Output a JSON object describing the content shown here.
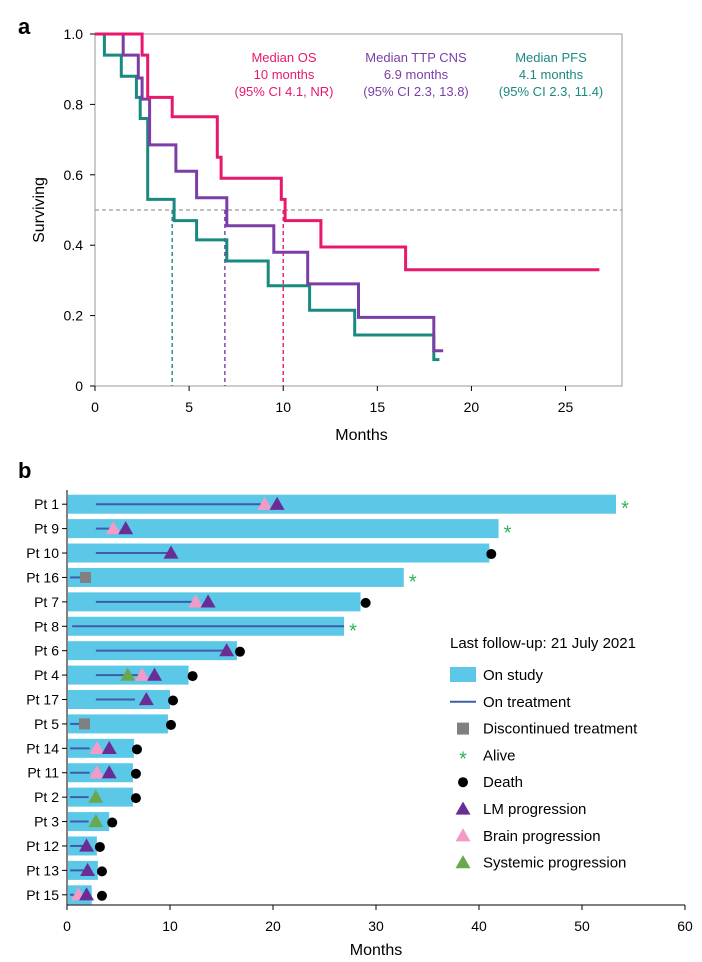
{
  "chart_data": [
    {
      "type": "line",
      "panel": "a",
      "xlabel": "Months",
      "ylabel": "Surviving",
      "xlim": [
        0,
        28
      ],
      "ylim": [
        0,
        1
      ],
      "xticks": [
        "0",
        "5",
        "10",
        "15",
        "20",
        "25"
      ],
      "yticks": [
        "0",
        "0.2",
        "0.4",
        "0.6",
        "0.8",
        "1.0"
      ],
      "median_line": 0.5,
      "series": [
        {
          "name": "OS",
          "color": "#e8186d",
          "steps": [
            [
              0,
              1.0
            ],
            [
              2.5,
              1.0
            ],
            [
              2.5,
              0.94
            ],
            [
              2.8,
              0.94
            ],
            [
              2.8,
              0.82
            ],
            [
              4.1,
              0.82
            ],
            [
              4.1,
              0.765
            ],
            [
              6.5,
              0.765
            ],
            [
              6.5,
              0.65
            ],
            [
              6.7,
              0.65
            ],
            [
              6.7,
              0.59
            ],
            [
              9.9,
              0.59
            ],
            [
              9.9,
              0.53
            ],
            [
              10.1,
              0.53
            ],
            [
              10.1,
              0.47
            ],
            [
              12.0,
              0.47
            ],
            [
              12.0,
              0.395
            ],
            [
              16.5,
              0.395
            ],
            [
              16.5,
              0.33
            ],
            [
              26.8,
              0.33
            ]
          ],
          "annotation": [
            "Median OS",
            "10 months",
            "(95% CI 4.1, NR)"
          ],
          "median": 10.0
        },
        {
          "name": "TTP CNS",
          "color": "#7b3ea6",
          "steps": [
            [
              0,
              1.0
            ],
            [
              1.5,
              1.0
            ],
            [
              1.5,
              0.94
            ],
            [
              2.3,
              0.94
            ],
            [
              2.3,
              0.875
            ],
            [
              2.5,
              0.875
            ],
            [
              2.5,
              0.815
            ],
            [
              2.9,
              0.815
            ],
            [
              2.9,
              0.685
            ],
            [
              4.3,
              0.685
            ],
            [
              4.3,
              0.61
            ],
            [
              5.4,
              0.61
            ],
            [
              5.4,
              0.535
            ],
            [
              7.0,
              0.535
            ],
            [
              7.0,
              0.455
            ],
            [
              9.5,
              0.455
            ],
            [
              9.5,
              0.38
            ],
            [
              11.3,
              0.38
            ],
            [
              11.3,
              0.29
            ],
            [
              14.0,
              0.29
            ],
            [
              14.0,
              0.195
            ],
            [
              18.0,
              0.195
            ],
            [
              18.0,
              0.1
            ],
            [
              18.5,
              0.1
            ]
          ],
          "annotation": [
            "Median TTP CNS",
            "6.9 months",
            "(95% CI 2.3, 13.8)"
          ],
          "median": 6.9
        },
        {
          "name": "PFS",
          "color": "#1a8a80",
          "steps": [
            [
              0,
              1.0
            ],
            [
              0.5,
              1.0
            ],
            [
              0.5,
              0.94
            ],
            [
              1.4,
              0.94
            ],
            [
              1.4,
              0.88
            ],
            [
              2.2,
              0.88
            ],
            [
              2.2,
              0.82
            ],
            [
              2.4,
              0.82
            ],
            [
              2.4,
              0.76
            ],
            [
              2.8,
              0.76
            ],
            [
              2.8,
              0.53
            ],
            [
              4.2,
              0.53
            ],
            [
              4.2,
              0.47
            ],
            [
              5.4,
              0.47
            ],
            [
              5.4,
              0.415
            ],
            [
              7.0,
              0.415
            ],
            [
              7.0,
              0.355
            ],
            [
              9.2,
              0.355
            ],
            [
              9.2,
              0.285
            ],
            [
              11.4,
              0.285
            ],
            [
              11.4,
              0.215
            ],
            [
              13.8,
              0.215
            ],
            [
              13.8,
              0.145
            ],
            [
              18.0,
              0.145
            ],
            [
              18.0,
              0.075
            ],
            [
              18.3,
              0.075
            ]
          ],
          "annotation": [
            "Median PFS",
            "4.1 months",
            "(95% CI 2.3, 11.4)"
          ],
          "median": 4.1
        }
      ]
    },
    {
      "type": "bar",
      "panel": "b",
      "orientation": "horizontal",
      "xlabel": "Months",
      "xlim": [
        0,
        60
      ],
      "xticks": [
        "0",
        "10",
        "20",
        "30",
        "40",
        "50",
        "60"
      ],
      "legend": {
        "title": "Last follow-up: 21 July 2021",
        "items": [
          {
            "key": "on_study",
            "label": "On study"
          },
          {
            "key": "on_treatment",
            "label": "On treatment"
          },
          {
            "key": "discontinued",
            "label": "Discontinued treatment"
          },
          {
            "key": "alive",
            "label": "Alive"
          },
          {
            "key": "death",
            "label": "Death"
          },
          {
            "key": "lm",
            "label": "LM progression"
          },
          {
            "key": "brain",
            "label": "Brain progression"
          },
          {
            "key": "systemic",
            "label": "Systemic progression"
          }
        ]
      },
      "colors": {
        "bar": "#5bc8e8",
        "treatment": "#3c5ea8",
        "discontinued": "#808080",
        "alive": "#2fb35a",
        "death": "#000000",
        "lm": "#6a2d96",
        "brain": "#f49ac9",
        "systemic": "#6aa84f"
      },
      "patients": [
        {
          "label": "Pt 1",
          "study": 53.3,
          "treatment": [
            2.8,
            19.2
          ],
          "brain": [
            19.2
          ],
          "lm": [
            20.4
          ],
          "systemic": [],
          "alive": true,
          "death": false,
          "discontinued": null
        },
        {
          "label": "Pt 9",
          "study": 41.9,
          "treatment": [
            2.8,
            4.3
          ],
          "brain": [
            4.5
          ],
          "lm": [
            5.7
          ],
          "systemic": [],
          "alive": true,
          "death": false,
          "discontinued": null
        },
        {
          "label": "Pt 10",
          "study": 41.0,
          "treatment": [
            2.8,
            9.9
          ],
          "brain": [],
          "lm": [
            10.1
          ],
          "systemic": [],
          "alive": false,
          "death": true,
          "deathAt": 41.0,
          "discontinued": null
        },
        {
          "label": "Pt 16",
          "study": 32.7,
          "treatment": [
            0.3,
            1.5
          ],
          "brain": [],
          "lm": [],
          "systemic": [],
          "alive": true,
          "death": false,
          "discontinued": 1.8
        },
        {
          "label": "Pt 7",
          "study": 28.5,
          "treatment": [
            2.8,
            12.3
          ],
          "brain": [
            12.5
          ],
          "lm": [
            13.7
          ],
          "systemic": [],
          "alive": false,
          "death": true,
          "deathAt": 28.8,
          "discontinued": null
        },
        {
          "label": "Pt 8",
          "study": 26.9,
          "treatment": [
            0.5,
            26.9
          ],
          "brain": [],
          "lm": [],
          "systemic": [],
          "alive": true,
          "death": false,
          "discontinued": null
        },
        {
          "label": "Pt 6",
          "study": 16.5,
          "treatment": [
            2.8,
            15.8
          ],
          "brain": [],
          "lm": [
            15.5
          ],
          "systemic": [],
          "alive": false,
          "death": true,
          "deathAt": 16.6,
          "discontinued": null
        },
        {
          "label": "Pt 4",
          "study": 11.8,
          "treatment": [
            2.8,
            7.0
          ],
          "brain": [
            7.3
          ],
          "lm": [
            8.5
          ],
          "systemic": [
            5.9
          ],
          "alive": false,
          "death": true,
          "deathAt": 12.0,
          "discontinued": null
        },
        {
          "label": "Pt 17",
          "study": 10.0,
          "treatment": [
            2.8,
            6.6
          ],
          "brain": [],
          "lm": [
            7.7
          ],
          "systemic": [],
          "alive": false,
          "death": true,
          "deathAt": 10.1,
          "discontinued": null
        },
        {
          "label": "Pt 5",
          "study": 9.8,
          "treatment": [
            0.3,
            1.6
          ],
          "brain": [],
          "lm": [],
          "systemic": [],
          "alive": false,
          "death": true,
          "deathAt": 9.9,
          "discontinued": 1.7
        },
        {
          "label": "Pt 14",
          "study": 6.5,
          "treatment": [
            0.3,
            2.2
          ],
          "brain": [
            2.9
          ],
          "lm": [
            4.1
          ],
          "systemic": [],
          "alive": false,
          "death": true,
          "deathAt": 6.6,
          "discontinued": null
        },
        {
          "label": "Pt 11",
          "study": 6.4,
          "treatment": [
            0.3,
            2.2
          ],
          "brain": [
            2.9
          ],
          "lm": [
            4.1
          ],
          "systemic": [],
          "alive": false,
          "death": true,
          "deathAt": 6.5,
          "discontinued": null
        },
        {
          "label": "Pt 2",
          "study": 6.4,
          "treatment": [
            0.3,
            2.1
          ],
          "brain": [],
          "lm": [],
          "systemic": [
            2.8
          ],
          "alive": false,
          "death": true,
          "deathAt": 6.5,
          "discontinued": null
        },
        {
          "label": "Pt 3",
          "study": 4.1,
          "treatment": [
            0.3,
            2.1
          ],
          "brain": [],
          "lm": [],
          "systemic": [
            2.8
          ],
          "alive": false,
          "death": true,
          "deathAt": 4.2,
          "discontinued": null
        },
        {
          "label": "Pt 12",
          "study": 2.9,
          "treatment": [
            0.3,
            1.6
          ],
          "brain": [],
          "lm": [
            1.9
          ],
          "systemic": [],
          "alive": false,
          "death": true,
          "deathAt": 3.0,
          "discontinued": null
        },
        {
          "label": "Pt 13",
          "study": 3.0,
          "treatment": [
            0.3,
            1.6
          ],
          "brain": [],
          "lm": [
            2.0
          ],
          "systemic": [],
          "alive": false,
          "death": true,
          "deathAt": 3.2,
          "discontinued": null
        },
        {
          "label": "Pt 15",
          "study": 2.4,
          "treatment": [
            0.3,
            0.8
          ],
          "brain": [
            1.1
          ],
          "lm": [
            1.9
          ],
          "systemic": [],
          "alive": false,
          "death": true,
          "deathAt": 3.2,
          "discontinued": null
        }
      ]
    }
  ],
  "panels": {
    "a": "a",
    "b": "b"
  }
}
